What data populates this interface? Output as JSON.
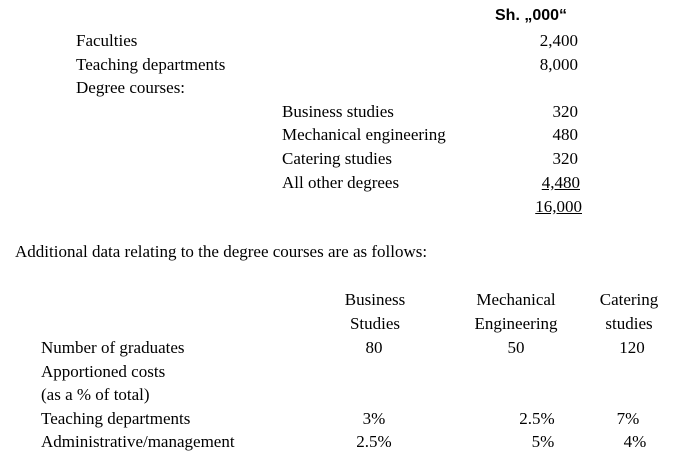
{
  "header": {
    "unit": "Sh. „000“"
  },
  "cost_table": {
    "rows": [
      {
        "label": "Faculties",
        "value": "2,400"
      },
      {
        "label": "Teaching departments",
        "value": "8,000"
      }
    ],
    "degree_heading": "Degree courses:",
    "degree_rows": [
      {
        "label": "Business studies",
        "value": "320"
      },
      {
        "label": "Mechanical engineering",
        "value": "480"
      },
      {
        "label": "Catering studies",
        "value": "320"
      },
      {
        "label": "All other degrees",
        "value": "4,480"
      }
    ],
    "total": "16,000"
  },
  "note": "Additional data relating to the degree courses are as follows:",
  "data_table": {
    "columns": [
      [
        "Business",
        "Studies"
      ],
      [
        "Mechanical",
        "Engineering"
      ],
      [
        "Catering",
        "studies"
      ]
    ],
    "graduates": {
      "label": "Number of graduates",
      "values": [
        "80",
        "50",
        "120"
      ]
    },
    "apportioned_heading": [
      "Apportioned costs",
      "(as a % of total)"
    ],
    "rows": [
      {
        "label": "Teaching departments",
        "values": [
          "3%",
          "2.5%",
          "7%"
        ]
      },
      {
        "label": "Administrative/management",
        "values": [
          "2.5%",
          "5%",
          "4%"
        ]
      }
    ]
  }
}
